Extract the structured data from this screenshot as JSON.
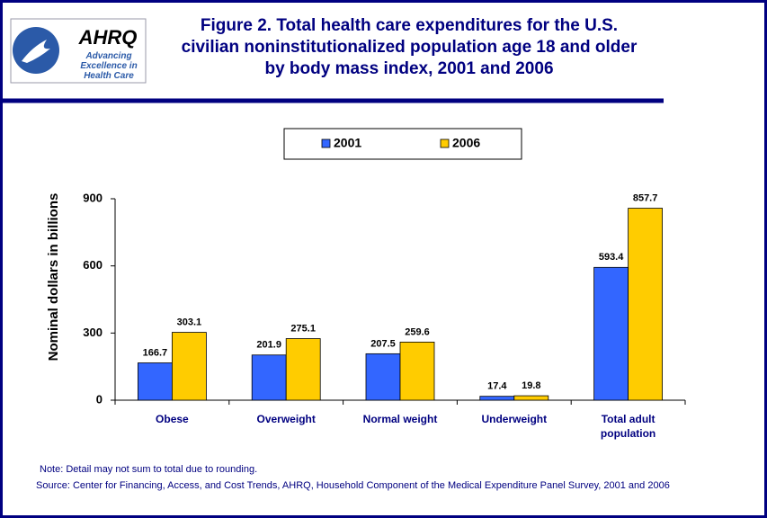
{
  "logo": {
    "name": "AHRQ",
    "tagline": "Advancing Excellence in Health Care"
  },
  "chart_data": {
    "type": "bar",
    "title": "Figure 2. Total health care expenditures for the U.S. civilian noninstitutionalized population age 18 and older by body mass index, 2001 and 2006",
    "y_label": "Nominal dollars in billions",
    "categories": [
      "Obese",
      "Overweight",
      "Normal weight",
      "Underweight",
      "Total adult population"
    ],
    "series": [
      {
        "name": "2001",
        "color": "#3366ff",
        "values": [
          166.7,
          201.9,
          207.5,
          17.4,
          593.4
        ]
      },
      {
        "name": "2006",
        "color": "#ffcc00",
        "values": [
          303.1,
          275.1,
          259.6,
          19.8,
          857.7
        ]
      }
    ],
    "ylim": [
      0,
      900
    ],
    "yticks": [
      0,
      300,
      600,
      900
    ],
    "grid": false,
    "legend": "top",
    "note": "Note: Detail may not sum to total due to rounding.",
    "source": "Source: Center for Financing, Access, and Cost Trends, AHRQ, Household Component of the Medical Expenditure Panel Survey, 2001 and 2006"
  }
}
